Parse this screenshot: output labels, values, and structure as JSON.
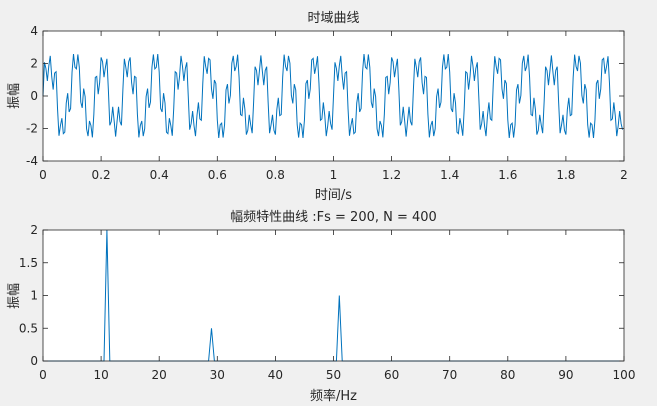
{
  "chart_data": [
    {
      "type": "line",
      "title": "时域曲线",
      "xlabel": "时间/s",
      "ylabel": "振幅",
      "xlim": [
        0,
        2
      ],
      "ylim": [
        -4,
        4
      ],
      "xticks": [
        0,
        0.2,
        0.4,
        0.6,
        0.8,
        1,
        1.2,
        1.4,
        1.6,
        1.8,
        2
      ],
      "xtick_labels": [
        "0",
        "0.2",
        "0.4",
        "0.6",
        "0.8",
        "1",
        "1.2",
        "1.4",
        "1.6",
        "1.8",
        "2"
      ],
      "yticks": [
        -4,
        -2,
        0,
        2,
        4
      ],
      "ytick_labels": [
        "-4",
        "-2",
        "0",
        "2",
        "4"
      ],
      "grid": false,
      "line_color": "#0072bd",
      "sample_rate": 200,
      "signal": {
        "components": [
          {
            "amplitude": 2,
            "frequency": 11
          },
          {
            "amplitude": 0.5,
            "frequency": 29
          },
          {
            "amplitude": 1,
            "frequency": 51
          }
        ]
      }
    },
    {
      "type": "line",
      "title": "幅频特性曲线 :Fs = 200, N = 400",
      "xlabel": "频率/Hz",
      "ylabel": "振幅",
      "xlim": [
        0,
        100
      ],
      "ylim": [
        0,
        2
      ],
      "xticks": [
        0,
        10,
        20,
        30,
        40,
        50,
        60,
        70,
        80,
        90,
        100
      ],
      "xtick_labels": [
        "0",
        "10",
        "20",
        "30",
        "40",
        "50",
        "60",
        "70",
        "80",
        "90",
        "100"
      ],
      "yticks": [
        0,
        0.5,
        1,
        1.5,
        2
      ],
      "ytick_labels": [
        "0",
        "0.5",
        "1",
        "1.5",
        "2"
      ],
      "grid": false,
      "line_color": "#0072bd",
      "peaks": [
        {
          "frequency": 11,
          "amplitude": 2
        },
        {
          "frequency": 29,
          "amplitude": 0.5
        },
        {
          "frequency": 51,
          "amplitude": 1
        }
      ]
    }
  ]
}
